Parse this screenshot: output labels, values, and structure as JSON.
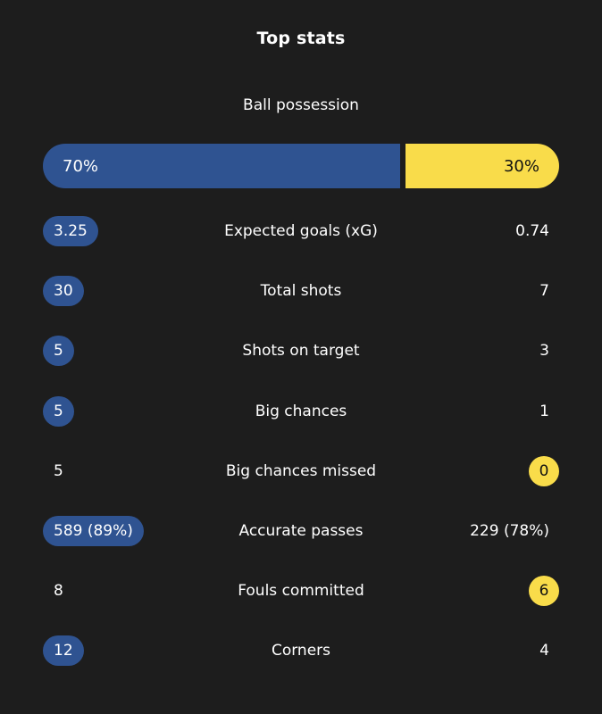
{
  "header": {
    "title": "Top stats"
  },
  "possession": {
    "label": "Ball possession",
    "home_text": "70%",
    "away_text": "30%",
    "home_fraction": 0.7,
    "home_color": "#2f5391",
    "away_color": "#f9dc4a"
  },
  "stats": [
    {
      "label": "Expected goals (xG)",
      "home": "3.25",
      "away": "0.74",
      "leader": "home"
    },
    {
      "label": "Total shots",
      "home": "30",
      "away": "7",
      "leader": "home"
    },
    {
      "label": "Shots on target",
      "home": "5",
      "away": "3",
      "leader": "home"
    },
    {
      "label": "Big chances",
      "home": "5",
      "away": "1",
      "leader": "home"
    },
    {
      "label": "Big chances missed",
      "home": "5",
      "away": "0",
      "leader": "away"
    },
    {
      "label": "Accurate passes",
      "home": "589 (89%)",
      "away": "229 (78%)",
      "leader": "home"
    },
    {
      "label": "Fouls committed",
      "home": "8",
      "away": "6",
      "leader": "away"
    },
    {
      "label": "Corners",
      "home": "12",
      "away": "4",
      "leader": "home"
    }
  ]
}
